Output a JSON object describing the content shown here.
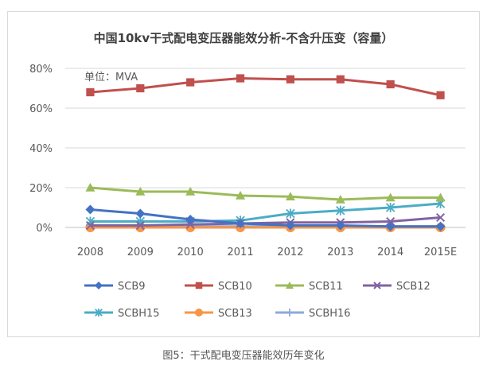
{
  "chart_data": {
    "type": "line",
    "title": "中国10kv干式配电变压器能效分析-不含升压变（容量）",
    "unit_note": "单位：MVA",
    "categories": [
      "2008",
      "2009",
      "2010",
      "2011",
      "2012",
      "2013",
      "2014",
      "2015E"
    ],
    "yticks": [
      "0%",
      "20%",
      "40%",
      "60%",
      "80%"
    ],
    "ylim": [
      0,
      80
    ],
    "grid": true,
    "legend_position": "bottom",
    "series": [
      {
        "name": "SCB9",
        "color": "#4472C4",
        "marker": "diamond",
        "values": [
          9,
          7,
          4,
          2,
          1,
          1,
          0.5,
          0.5
        ]
      },
      {
        "name": "SCB10",
        "color": "#C0504D",
        "marker": "square",
        "values": [
          68,
          70,
          73,
          75,
          74.5,
          74.5,
          72,
          66.5
        ]
      },
      {
        "name": "SCB11",
        "color": "#9BBB59",
        "marker": "triangle",
        "values": [
          20,
          18,
          18,
          16,
          15.5,
          14,
          15,
          15
        ]
      },
      {
        "name": "SCB12",
        "color": "#8064A2",
        "marker": "x",
        "values": [
          1,
          1,
          1.5,
          2,
          2.5,
          2.5,
          3,
          5
        ]
      },
      {
        "name": "SCBH15",
        "color": "#4BACC6",
        "marker": "star",
        "values": [
          3,
          3,
          3,
          3.5,
          7,
          8.5,
          10,
          12
        ]
      },
      {
        "name": "SCB13",
        "color": "#F79646",
        "marker": "circle",
        "values": [
          0,
          0,
          0,
          0,
          0,
          0,
          0,
          0
        ]
      },
      {
        "name": "SCBH16",
        "color": "#8EA9DB",
        "marker": "plus",
        "values": [
          0.5,
          0.5,
          0.5,
          0.5,
          0.5,
          0.5,
          0.5,
          0.5
        ]
      }
    ]
  },
  "caption": "图5：干式配电变压器能效历年变化"
}
